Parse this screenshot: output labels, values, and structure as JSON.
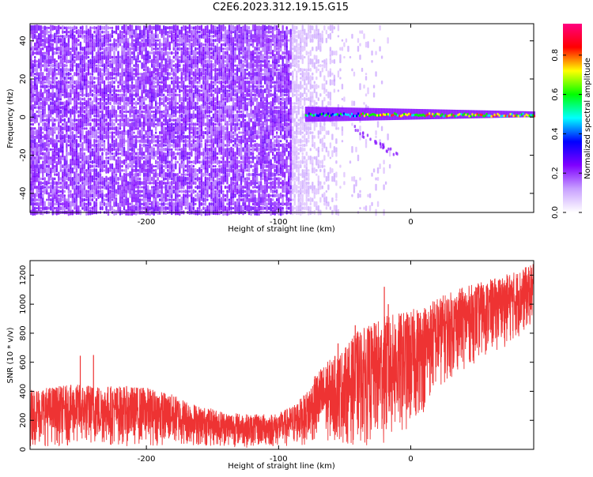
{
  "chart_data": [
    {
      "type": "heatmap",
      "title": "C2E6.2023.312.19.15.G15",
      "xlabel": "Height of straight line (km)",
      "ylabel": "Frequency (Hz)",
      "xlim": [
        -288,
        93
      ],
      "ylim": [
        -50,
        49
      ],
      "xticks": [
        -200,
        -100,
        0
      ],
      "yticks": [
        -40,
        -20,
        0,
        20,
        40
      ],
      "colorbar": {
        "label": "Normalized spectral amplitude",
        "range": [
          0,
          0.96
        ],
        "ticks": [
          0.0,
          0.2,
          0.4,
          0.6,
          0.8
        ],
        "colors": [
          "#ffffff",
          "#c8a0ff",
          "#7f00ff",
          "#0000ff",
          "#00ffff",
          "#00ff00",
          "#ffff00",
          "#ff0000",
          "#ff0080"
        ]
      },
      "description_bands": {
        "noise_region_x": [
          -288,
          -80
        ],
        "signal_trace_x": [
          -80,
          93
        ],
        "signal_frequency_hz": 0
      }
    },
    {
      "type": "line",
      "xlabel": "Height of straight line (km)",
      "ylabel": "SNR (10 * v/v)",
      "xlim": [
        -288,
        93
      ],
      "ylim": [
        0,
        1300
      ],
      "xticks": [
        -200,
        -100,
        0
      ],
      "yticks": [
        0,
        200,
        400,
        600,
        800,
        1000,
        1200
      ],
      "color": "#ee3333",
      "envelope": {
        "x": [
          -288,
          -250,
          -200,
          -180,
          -160,
          -140,
          -120,
          -100,
          -90,
          -80,
          -70,
          -60,
          -50,
          -40,
          -30,
          -20,
          -10,
          0,
          10,
          20,
          40,
          60,
          80,
          93
        ],
        "low": [
          20,
          20,
          20,
          20,
          15,
          15,
          10,
          10,
          10,
          30,
          40,
          40,
          30,
          20,
          20,
          20,
          60,
          120,
          250,
          400,
          550,
          650,
          750,
          850
        ],
        "high": [
          420,
          450,
          430,
          380,
          300,
          260,
          240,
          250,
          300,
          380,
          550,
          630,
          700,
          820,
          860,
          920,
          940,
          960,
          1000,
          1050,
          1120,
          1170,
          1230,
          1280
        ]
      },
      "spikes": [
        {
          "x": -250,
          "y": 645
        },
        {
          "x": -240,
          "y": 650
        },
        {
          "x": -55,
          "y": 730
        },
        {
          "x": -42,
          "y": 855
        },
        {
          "x": -20,
          "y": 1120
        },
        {
          "x": -17,
          "y": 1000
        }
      ]
    }
  ]
}
